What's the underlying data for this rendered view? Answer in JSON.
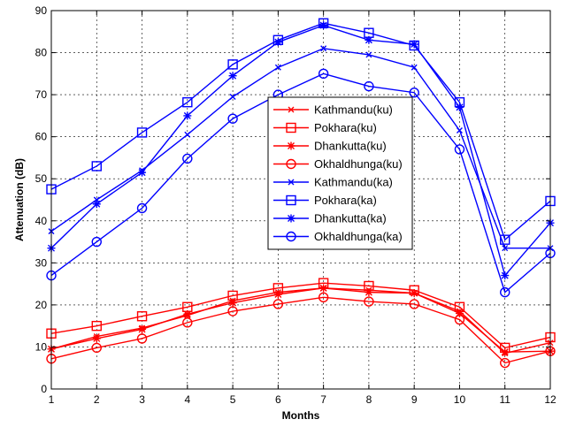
{
  "chart_data": {
    "type": "line",
    "title": "",
    "xlabel": "Months",
    "ylabel": "Attenuation (dB)",
    "x": [
      1,
      2,
      3,
      4,
      5,
      6,
      7,
      8,
      9,
      10,
      11,
      12
    ],
    "xlim": [
      1,
      12
    ],
    "ylim": [
      0,
      90
    ],
    "xticks": [
      "1",
      "2",
      "3",
      "4",
      "5",
      "6",
      "7",
      "8",
      "9",
      "10",
      "11",
      "12"
    ],
    "yticks": [
      "0",
      "10",
      "20",
      "30",
      "40",
      "50",
      "60",
      "70",
      "80",
      "90"
    ],
    "grid": true,
    "legend": "center",
    "series": [
      {
        "name": "Kathmandu(ku)",
        "color": "#ff0000",
        "marker": "x",
        "values": [
          9.5,
          12.5,
          14.5,
          17.5,
          21,
          23,
          24,
          23.5,
          22.8,
          18.5,
          8.5,
          11
        ]
      },
      {
        "name": "Pokhara(ku)",
        "color": "#ff0000",
        "marker": "square",
        "values": [
          13.2,
          15,
          17.3,
          19.5,
          22.2,
          24,
          25.2,
          24.5,
          23.5,
          19.5,
          9.8,
          12.3
        ]
      },
      {
        "name": "Dhankutta(ku)",
        "color": "#ff0000",
        "marker": "star",
        "values": [
          9.5,
          12,
          14.2,
          17.8,
          20.5,
          22.5,
          24,
          23,
          22.8,
          18,
          8.8,
          9
        ]
      },
      {
        "name": "Okhaldhunga(ku)",
        "color": "#ff0000",
        "marker": "circle",
        "values": [
          7.2,
          9.8,
          12,
          15.8,
          18.5,
          20.2,
          21.8,
          20.8,
          20.2,
          16.5,
          6.2,
          9
        ]
      },
      {
        "name": "Kathmandu(ka)",
        "color": "#0000ff",
        "marker": "x",
        "values": [
          37.5,
          45,
          52,
          60.5,
          69.5,
          76.5,
          81,
          79.5,
          76.5,
          61.5,
          33.5,
          33.5
        ]
      },
      {
        "name": "Pokhara(ka)",
        "color": "#0000ff",
        "marker": "square",
        "values": [
          47.5,
          53,
          61,
          68.2,
          77.2,
          83,
          87,
          84.7,
          81.7,
          68.2,
          35.5,
          44.7
        ]
      },
      {
        "name": "Dhankutta(ka)",
        "color": "#0000ff",
        "marker": "star",
        "values": [
          33.5,
          44,
          51.5,
          65,
          74.5,
          82.5,
          86.5,
          83,
          82,
          67,
          27,
          39.5
        ]
      },
      {
        "name": "Okhaldhunga(ka)",
        "color": "#0000ff",
        "marker": "circle",
        "values": [
          27,
          35,
          43,
          54.8,
          64.3,
          70,
          75,
          72,
          70.5,
          57,
          23,
          32.3
        ]
      }
    ]
  }
}
